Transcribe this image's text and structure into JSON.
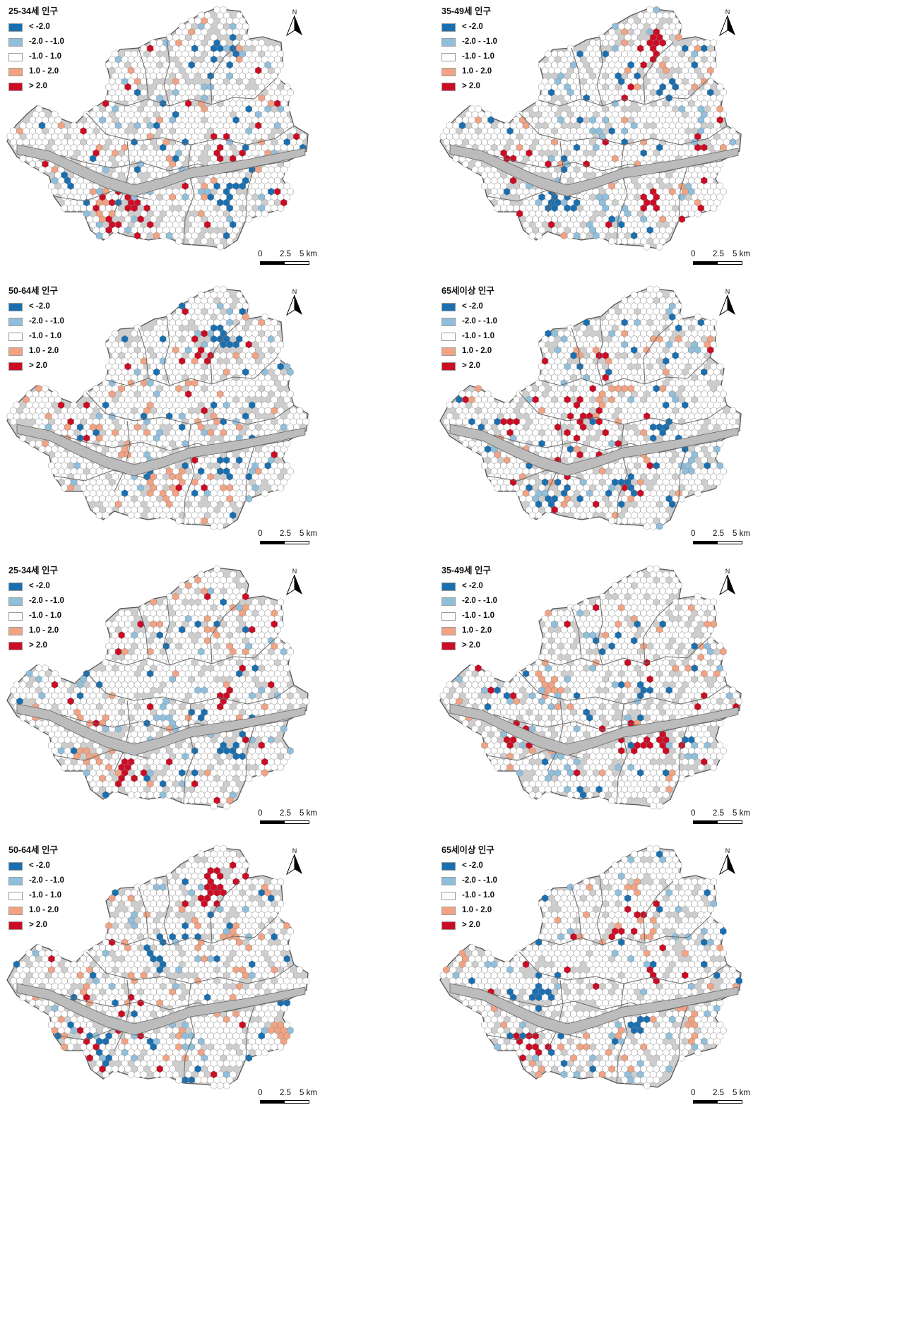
{
  "colors": {
    "strong_negative": "#1a6fb0",
    "negative": "#90bfdc",
    "neutral": "#ffffff",
    "positive": "#f2a383",
    "strong_positive": "#cc0c24",
    "land": "#cdcdcd",
    "hex_outline": "#8a8a8a"
  },
  "legend_classes": [
    {
      "label": "< -2.0",
      "color": "#1a6fb0"
    },
    {
      "label": "-2.0 - -1.0",
      "color": "#90bfdc"
    },
    {
      "label": "-1.0 - 1.0",
      "color": "#ffffff"
    },
    {
      "label": "1.0 - 2.0",
      "color": "#f2a383"
    },
    {
      "label": "> 2.0",
      "color": "#cc0c24"
    }
  ],
  "north_arrow": {
    "label": "N",
    "icon": "north-arrow-icon"
  },
  "scale_bar": {
    "ticks": [
      "0",
      "2.5",
      "5 km"
    ]
  },
  "panels": [
    {
      "title": "25-34세 인구"
    },
    {
      "title": "35-49세 인구"
    },
    {
      "title": "50-64세 인구"
    },
    {
      "title": "65세이상 인구"
    },
    {
      "title": "25-34세 인구"
    },
    {
      "title": "35-49세 인구"
    },
    {
      "title": "50-64세 인구"
    },
    {
      "title": "65세이상 인구"
    }
  ]
}
